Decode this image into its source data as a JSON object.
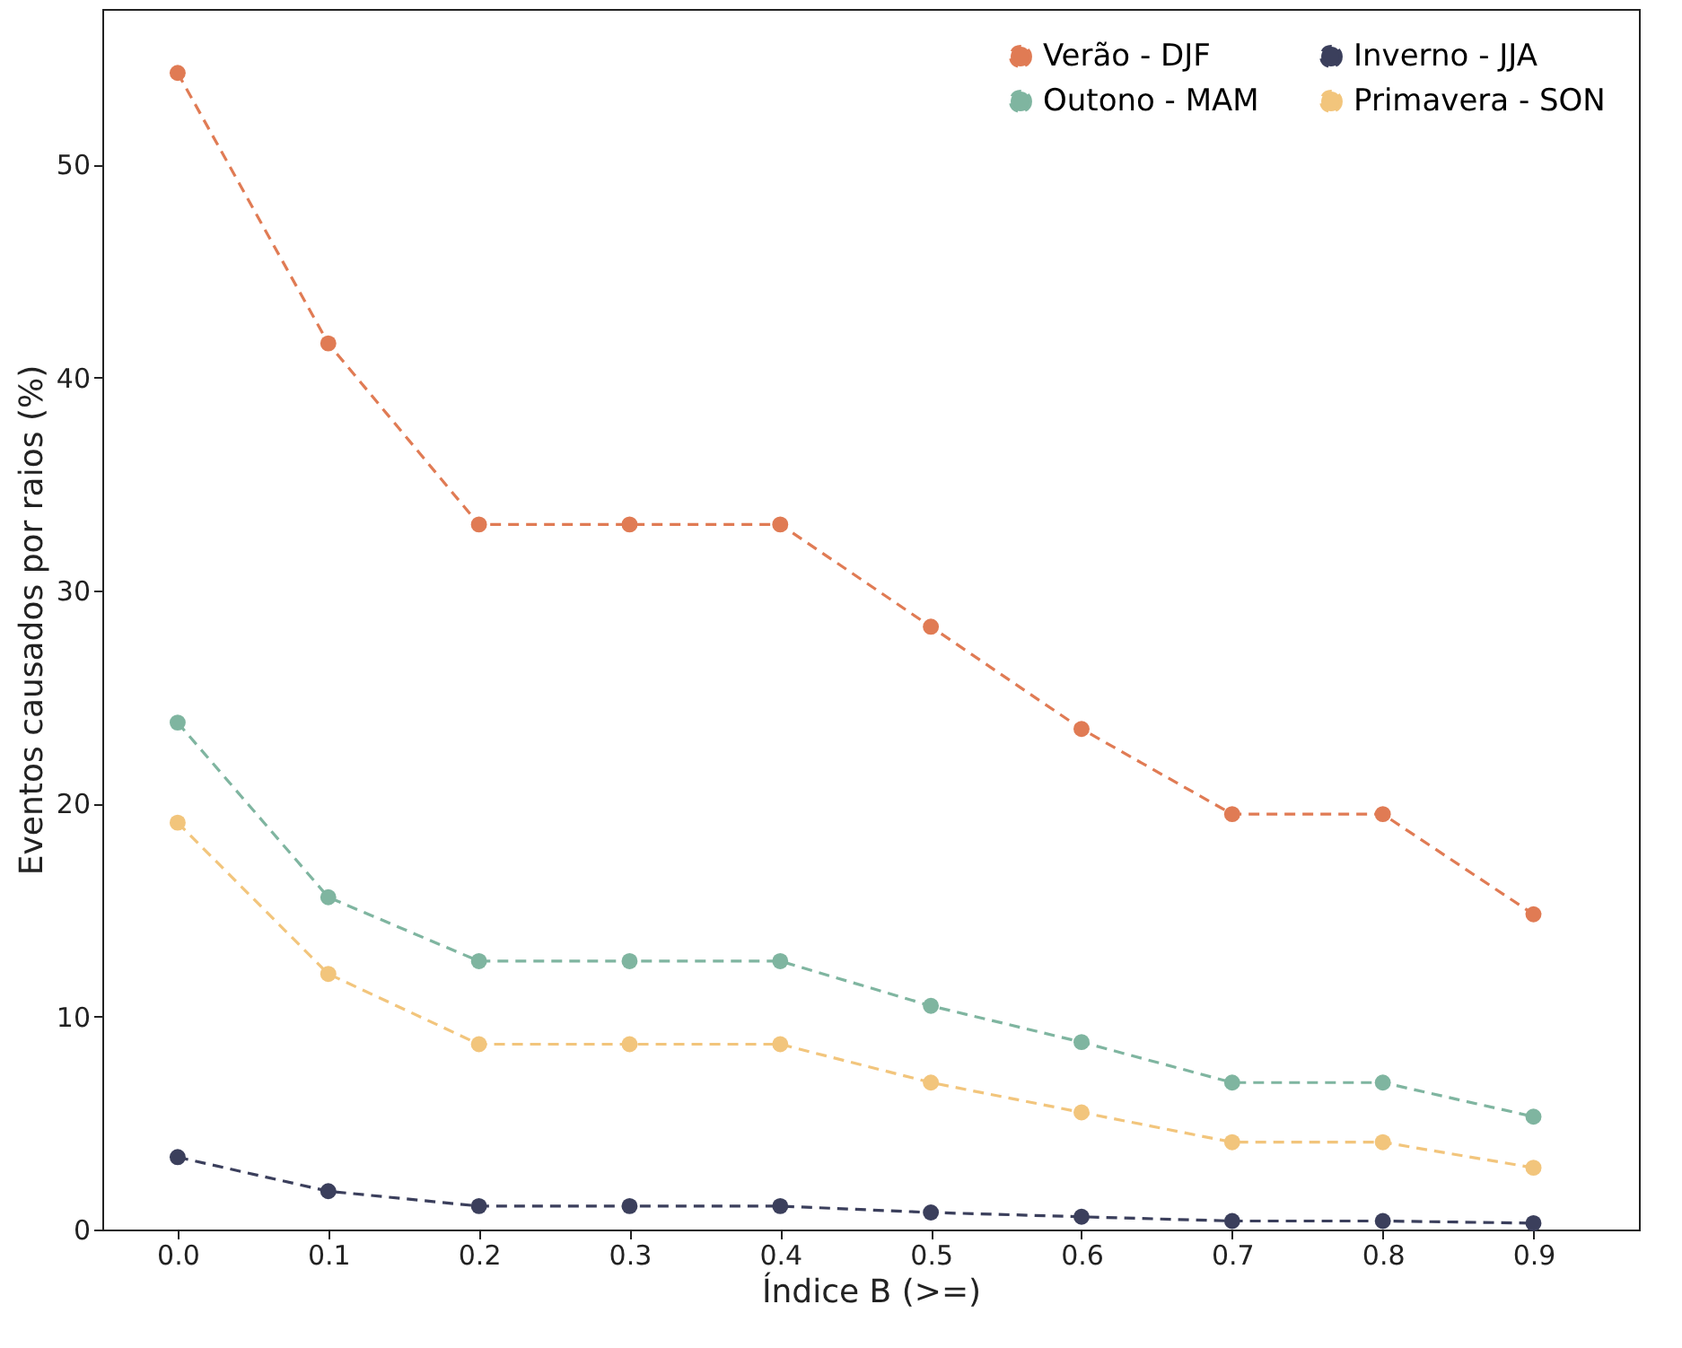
{
  "chart_data": {
    "type": "line",
    "xlabel": "Índice B (>=)",
    "ylabel": "Eventos causados por raios (%)",
    "x": [
      0.0,
      0.1,
      0.2,
      0.3,
      0.4,
      0.5,
      0.6,
      0.7,
      0.8,
      0.9
    ],
    "series": [
      {
        "name": "Verão - DJF",
        "color": "#e07b54",
        "values": [
          54.3,
          41.6,
          33.1,
          33.1,
          33.1,
          28.3,
          23.5,
          19.5,
          19.5,
          14.8
        ]
      },
      {
        "name": "Outono - MAM",
        "color": "#7fb5a0",
        "values": [
          23.8,
          15.6,
          12.6,
          12.6,
          12.6,
          10.5,
          8.8,
          6.9,
          6.9,
          5.3
        ]
      },
      {
        "name": "Inverno - JJA",
        "color": "#3b3f5c",
        "values": [
          3.4,
          1.8,
          1.1,
          1.1,
          1.1,
          0.8,
          0.6,
          0.4,
          0.4,
          0.3
        ]
      },
      {
        "name": "Primavera - SON",
        "color": "#f2c57c",
        "values": [
          19.1,
          12.0,
          8.7,
          8.7,
          8.7,
          6.9,
          5.5,
          4.1,
          4.1,
          2.9
        ]
      }
    ],
    "xlim": [
      -0.05,
      0.97
    ],
    "ylim": [
      0,
      57.3
    ],
    "xticks": [
      {
        "value": 0,
        "label": "0.0"
      },
      0.1,
      0.2,
      0.3,
      0.4,
      0.5,
      0.6,
      0.7,
      0.8,
      0.9
    ],
    "yticks": [
      0,
      10,
      20,
      30,
      40,
      50
    ],
    "grid": false,
    "legend": "top right",
    "marker": "circle",
    "line_style": "dashed"
  }
}
